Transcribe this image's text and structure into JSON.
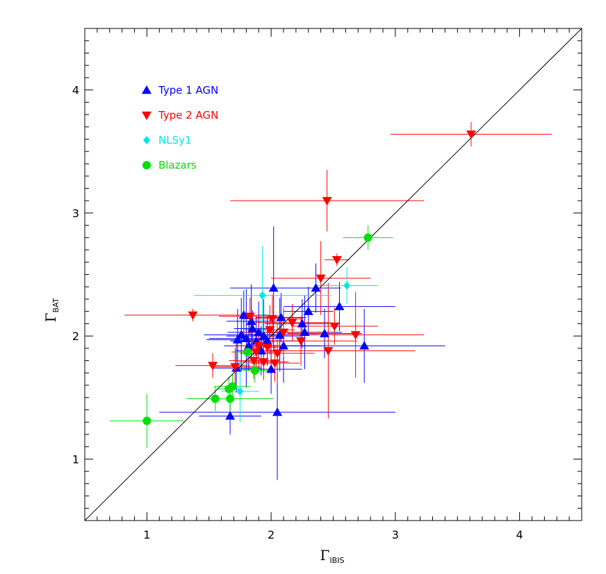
{
  "chart_data": {
    "type": "scatter",
    "title": "",
    "xlabel": {
      "symbol": "Γ",
      "sub": "IBIS"
    },
    "ylabel": {
      "symbol": "Γ",
      "sub": "BAT"
    },
    "xlim": [
      0.5,
      4.5
    ],
    "ylim": [
      0.5,
      4.5
    ],
    "xticks": [
      1,
      2,
      3,
      4
    ],
    "yticks": [
      1,
      2,
      3,
      4
    ],
    "grid": false,
    "legend_position": "top-left",
    "reference_line": "y = x",
    "series": [
      {
        "name": "Type 1 AGN",
        "marker": "triangle-up",
        "color": "#0000ff",
        "points": [
          {
            "x": 1.67,
            "y": 1.35,
            "xerr": 0.25,
            "yerr": 0.15
          },
          {
            "x": 1.72,
            "y": 1.74,
            "xerr": 0.2,
            "yerr": 0.2
          },
          {
            "x": 1.73,
            "y": 1.97,
            "xerr": 0.25,
            "yerr": 0.25
          },
          {
            "x": 1.76,
            "y": 2.01,
            "xerr": 0.3,
            "yerr": 0.3
          },
          {
            "x": 1.78,
            "y": 2.17,
            "xerr": 0.2,
            "yerr": 0.2
          },
          {
            "x": 1.8,
            "y": 1.98,
            "xerr": 0.3,
            "yerr": 0.4
          },
          {
            "x": 1.82,
            "y": 1.92,
            "xerr": 0.2,
            "yerr": 0.2
          },
          {
            "x": 1.84,
            "y": 2.12,
            "xerr": 0.2,
            "yerr": 0.3
          },
          {
            "x": 1.85,
            "y": 2.06,
            "xerr": 0.15,
            "yerr": 0.15
          },
          {
            "x": 1.88,
            "y": 1.96,
            "xerr": 0.2,
            "yerr": 0.2
          },
          {
            "x": 1.9,
            "y": 2.03,
            "xerr": 0.25,
            "yerr": 0.25
          },
          {
            "x": 1.92,
            "y": 1.88,
            "xerr": 0.2,
            "yerr": 0.2
          },
          {
            "x": 1.94,
            "y": 2.0,
            "xerr": 0.3,
            "yerr": 0.3
          },
          {
            "x": 1.97,
            "y": 1.96,
            "xerr": 0.3,
            "yerr": 0.2
          },
          {
            "x": 2.0,
            "y": 1.73,
            "xerr": 0.25,
            "yerr": 0.2
          },
          {
            "x": 2.02,
            "y": 2.39,
            "xerr": 0.35,
            "yerr": 0.5
          },
          {
            "x": 2.05,
            "y": 1.38,
            "xerr": 0.95,
            "yerr": 0.55
          },
          {
            "x": 2.07,
            "y": 2.01,
            "xerr": 0.3,
            "yerr": 0.3
          },
          {
            "x": 2.08,
            "y": 2.15,
            "xerr": 0.2,
            "yerr": 0.2
          },
          {
            "x": 2.1,
            "y": 1.92,
            "xerr": 0.3,
            "yerr": 0.3
          },
          {
            "x": 2.25,
            "y": 2.1,
            "xerr": 0.3,
            "yerr": 0.2
          },
          {
            "x": 2.27,
            "y": 2.03,
            "xerr": 0.3,
            "yerr": 0.3
          },
          {
            "x": 2.3,
            "y": 2.2,
            "xerr": 0.2,
            "yerr": 0.2
          },
          {
            "x": 2.36,
            "y": 2.39,
            "xerr": 0.2,
            "yerr": 0.2
          },
          {
            "x": 2.43,
            "y": 2.02,
            "xerr": 0.3,
            "yerr": 0.2
          },
          {
            "x": 2.55,
            "y": 2.24,
            "xerr": 0.45,
            "yerr": 0.2
          },
          {
            "x": 2.75,
            "y": 1.92,
            "xerr": 0.65,
            "yerr": 0.3
          }
        ]
      },
      {
        "name": "Type 2 AGN",
        "marker": "triangle-down",
        "color": "#ff0000",
        "points": [
          {
            "x": 1.37,
            "y": 2.17,
            "xerr": 0.55,
            "yerr": 0.05
          },
          {
            "x": 1.53,
            "y": 1.76,
            "xerr": 0.3,
            "yerr": 0.1
          },
          {
            "x": 1.71,
            "y": 1.75,
            "xerr": 0.2,
            "yerr": 0.15
          },
          {
            "x": 1.83,
            "y": 2.16,
            "xerr": 0.25,
            "yerr": 0.15
          },
          {
            "x": 1.86,
            "y": 1.8,
            "xerr": 0.2,
            "yerr": 0.15
          },
          {
            "x": 1.88,
            "y": 1.87,
            "xerr": 0.2,
            "yerr": 0.15
          },
          {
            "x": 1.9,
            "y": 1.92,
            "xerr": 0.2,
            "yerr": 0.2
          },
          {
            "x": 1.94,
            "y": 1.79,
            "xerr": 0.2,
            "yerr": 0.15
          },
          {
            "x": 1.97,
            "y": 1.91,
            "xerr": 0.15,
            "yerr": 0.15
          },
          {
            "x": 1.99,
            "y": 2.05,
            "xerr": 0.2,
            "yerr": 0.2
          },
          {
            "x": 2.01,
            "y": 2.14,
            "xerr": 0.25,
            "yerr": 0.2
          },
          {
            "x": 2.03,
            "y": 1.78,
            "xerr": 0.2,
            "yerr": 0.15
          },
          {
            "x": 2.05,
            "y": 1.86,
            "xerr": 0.3,
            "yerr": 0.25
          },
          {
            "x": 2.1,
            "y": 2.03,
            "xerr": 0.35,
            "yerr": 0.2
          },
          {
            "x": 2.17,
            "y": 2.11,
            "xerr": 0.3,
            "yerr": 0.15
          },
          {
            "x": 2.24,
            "y": 1.96,
            "xerr": 0.45,
            "yerr": 0.2
          },
          {
            "x": 2.4,
            "y": 2.47,
            "xerr": 0.4,
            "yerr": 0.3
          },
          {
            "x": 2.45,
            "y": 3.1,
            "xerr": 0.78,
            "yerr": 0.25
          },
          {
            "x": 2.46,
            "y": 1.88,
            "xerr": 0.7,
            "yerr": 0.55
          },
          {
            "x": 2.51,
            "y": 2.08,
            "xerr": 0.35,
            "yerr": 0.15
          },
          {
            "x": 2.53,
            "y": 2.62,
            "xerr": 0.1,
            "yerr": 0.05
          },
          {
            "x": 2.68,
            "y": 2.01,
            "xerr": 0.55,
            "yerr": 0.35
          },
          {
            "x": 3.61,
            "y": 3.64,
            "xerr": 0.65,
            "yerr": 0.1
          }
        ]
      },
      {
        "name": "NLSy1",
        "marker": "diamond",
        "color": "#00e5ee",
        "points": [
          {
            "x": 1.75,
            "y": 1.55,
            "xerr": 0.15,
            "yerr": 0.25
          },
          {
            "x": 1.93,
            "y": 2.33,
            "xerr": 0.55,
            "yerr": 0.4
          },
          {
            "x": 2.61,
            "y": 2.41,
            "xerr": 0.25,
            "yerr": 0.15
          }
        ]
      },
      {
        "name": "Blazars",
        "marker": "circle",
        "color": "#00e000",
        "points": [
          {
            "x": 1.0,
            "y": 1.31,
            "xerr": 0.3,
            "yerr": 0.22
          },
          {
            "x": 1.55,
            "y": 1.49,
            "xerr": 0.1,
            "yerr": 0.1
          },
          {
            "x": 1.66,
            "y": 1.57,
            "xerr": 0.1,
            "yerr": 0.1
          },
          {
            "x": 1.67,
            "y": 1.49,
            "xerr": 0.35,
            "yerr": 0.1
          },
          {
            "x": 1.69,
            "y": 1.59,
            "xerr": 0.15,
            "yerr": 0.1
          },
          {
            "x": 1.81,
            "y": 1.87,
            "xerr": 0.1,
            "yerr": 0.1
          },
          {
            "x": 1.87,
            "y": 1.72,
            "xerr": 0.1,
            "yerr": 0.1
          },
          {
            "x": 2.78,
            "y": 2.8,
            "xerr": 0.2,
            "yerr": 0.1
          }
        ]
      }
    ]
  }
}
